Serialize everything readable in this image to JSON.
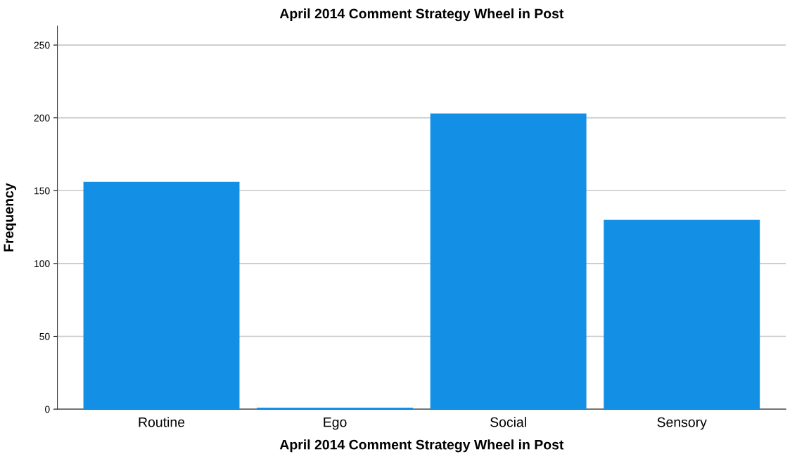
{
  "chart_data": {
    "type": "bar",
    "title": "April 2014 Comment Strategy Wheel in Post",
    "xlabel": "April 2014 Comment Strategy Wheel in Post",
    "ylabel": "Frequency",
    "categories": [
      "Routine",
      "Ego",
      "Social",
      "Sensory"
    ],
    "values": [
      156,
      1,
      203,
      130
    ],
    "color": "#1390e6",
    "ylim": [
      0,
      263
    ],
    "yticks": [
      0,
      50,
      100,
      150,
      200,
      250
    ],
    "grid": "y"
  }
}
